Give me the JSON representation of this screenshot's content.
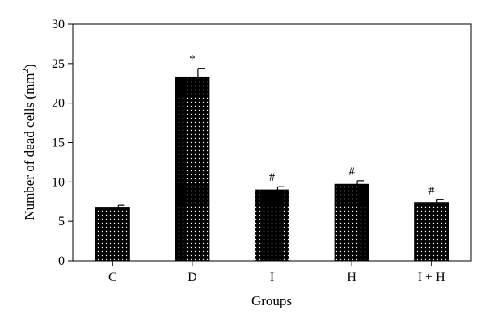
{
  "chart_data": {
    "type": "bar",
    "categories": [
      "C",
      "D",
      "I",
      "H",
      "I + H"
    ],
    "values": [
      6.8,
      23.3,
      9.0,
      9.7,
      7.4
    ],
    "errors": [
      0.25,
      1.1,
      0.4,
      0.45,
      0.35
    ],
    "annotations": [
      "",
      "*",
      "#",
      "#",
      "#"
    ],
    "xlabel": "Groups",
    "ylabel_main": "Number of dead cells (mm",
    "ylabel_sup": "2",
    "ylabel_close": ")",
    "ylim": [
      0,
      30
    ],
    "yticks": [
      0,
      5,
      10,
      15,
      20,
      25,
      30
    ],
    "grid": false,
    "bar_pattern": "black with white dots"
  }
}
